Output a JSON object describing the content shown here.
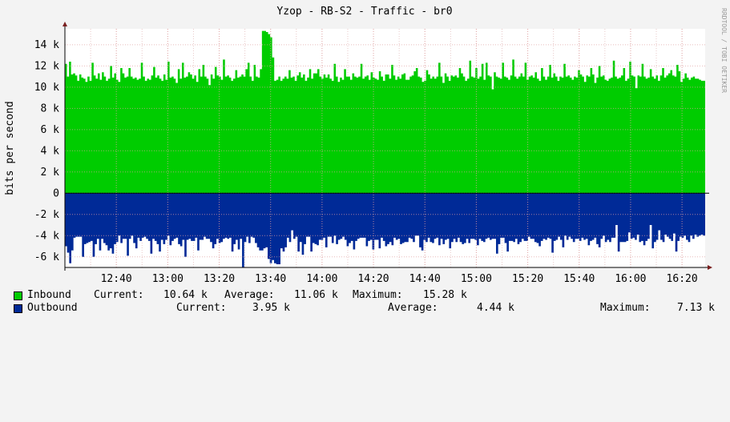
{
  "chart_data": {
    "type": "area",
    "title": "Yzop - RB-S2 - Traffic - br0",
    "ylabel": "bits per second",
    "watermark": "RRDTOOL / TOBI OETIKER",
    "ylim": [
      -7000,
      15500
    ],
    "yticks": [
      {
        "value": 14000,
        "label": "14 k"
      },
      {
        "value": 12000,
        "label": "12 k"
      },
      {
        "value": 10000,
        "label": "10 k"
      },
      {
        "value": 8000,
        "label": "8 k"
      },
      {
        "value": 6000,
        "label": "6 k"
      },
      {
        "value": 4000,
        "label": "4 k"
      },
      {
        "value": 2000,
        "label": "2 k"
      },
      {
        "value": 0,
        "label": "0"
      },
      {
        "value": -2000,
        "label": "-2 k"
      },
      {
        "value": -4000,
        "label": "-4 k"
      },
      {
        "value": -6000,
        "label": "-6 k"
      }
    ],
    "x_range": [
      "12:20",
      "16:29"
    ],
    "xticks": [
      "12:40",
      "13:00",
      "13:20",
      "13:40",
      "14:00",
      "14:20",
      "14:40",
      "15:00",
      "15:20",
      "15:40",
      "16:00",
      "16:20"
    ],
    "grid": true,
    "series": [
      {
        "name": "Inbound",
        "color": "#00cc00",
        "values": [
          12200,
          11000,
          12400,
          11200,
          11300,
          11100,
          10600,
          11200,
          10900,
          10800,
          10500,
          11000,
          10600,
          12300,
          11100,
          10800,
          11300,
          10700,
          11400,
          11000,
          10600,
          10800,
          12000,
          10900,
          11300,
          10700,
          10500,
          11800,
          11300,
          10900,
          11000,
          11800,
          11000,
          10800,
          10900,
          10700,
          10800,
          12300,
          11000,
          10600,
          10800,
          10700,
          11100,
          11900,
          10900,
          11100,
          10800,
          10600,
          11200,
          10700,
          12400,
          10900,
          11000,
          10800,
          10400,
          11700,
          10800,
          12300,
          10900,
          11000,
          11400,
          11200,
          10800,
          11100,
          10500,
          11700,
          11000,
          12100,
          11000,
          10800,
          10200,
          11200,
          10800,
          11900,
          11100,
          11000,
          10700,
          12600,
          11000,
          11100,
          10900,
          10600,
          10800,
          11600,
          10900,
          11000,
          11200,
          11000,
          11700,
          12300,
          11000,
          10600,
          12100,
          11000,
          10900,
          11700,
          15300,
          15300,
          15200,
          15000,
          14700,
          12800,
          10600,
          10700,
          11000,
          10600,
          10800,
          11000,
          10800,
          11600,
          10900,
          11000,
          10600,
          11100,
          11400,
          10900,
          11200,
          10600,
          10900,
          11700,
          10800,
          11300,
          11300,
          11700,
          11000,
          10800,
          11200,
          10900,
          11200,
          10800,
          10600,
          12200,
          11000,
          10500,
          10900,
          10700,
          11700,
          11000,
          11000,
          10700,
          11300,
          11000,
          10900,
          11000,
          12200,
          10800,
          11000,
          11100,
          10700,
          11400,
          10900,
          10800,
          10700,
          11500,
          11000,
          10600,
          11200,
          11200,
          10800,
          12100,
          11100,
          10700,
          11000,
          10800,
          11200,
          11300,
          10700,
          10700,
          11000,
          11100,
          11500,
          11800,
          11000,
          10900,
          10500,
          10600,
          11600,
          11200,
          10800,
          11000,
          10800,
          11000,
          12300,
          11000,
          10400,
          11300,
          11000,
          10600,
          11100,
          11000,
          11100,
          10900,
          11800,
          11300,
          11000,
          10600,
          10800,
          12500,
          11000,
          10900,
          11800,
          10800,
          11000,
          12200,
          10700,
          12300,
          11100,
          11000,
          9800,
          11400,
          11000,
          10900,
          10800,
          12300,
          11000,
          10900,
          10700,
          11100,
          12600,
          11000,
          10800,
          11000,
          11300,
          11000,
          12300,
          10700,
          11000,
          11100,
          10900,
          11400,
          10800,
          10600,
          11800,
          11000,
          10700,
          11000,
          12100,
          10900,
          11300,
          11000,
          10600,
          11000,
          10900,
          12200,
          11000,
          11100,
          10900,
          10700,
          11000,
          10900,
          11600,
          11200,
          11000,
          10500,
          11100,
          11000,
          11800,
          11200,
          10400,
          10900,
          12000,
          11000,
          11100,
          10700,
          10600,
          10800,
          10900,
          12500,
          11000,
          10800,
          10900,
          11100,
          11800,
          10600,
          10800,
          12400,
          11100,
          11000,
          9900,
          11100,
          11000,
          12200,
          11000,
          10800,
          10900,
          11700,
          11000,
          10800,
          11100,
          10600,
          11100,
          11800,
          10900,
          11100,
          11300,
          11600,
          11100,
          11000,
          12100,
          11500,
          10500,
          10800,
          11300,
          10900,
          10700,
          10900,
          11000,
          10800,
          10800,
          10700,
          10600,
          10600
        ]
      },
      {
        "name": "Outbound",
        "color": "#002a97",
        "values": [
          -5000,
          -5600,
          -6600,
          -5400,
          -4200,
          -4100,
          -4100,
          -4100,
          -6000,
          -4800,
          -4700,
          -4600,
          -4500,
          -6000,
          -4800,
          -4300,
          -5400,
          -4300,
          -4700,
          -4900,
          -5400,
          -5200,
          -5700,
          -4800,
          -4600,
          -4000,
          -4700,
          -4300,
          -4300,
          -5900,
          -4300,
          -4000,
          -4700,
          -5200,
          -4200,
          -4500,
          -4200,
          -4100,
          -4300,
          -4500,
          -5700,
          -4300,
          -4500,
          -4800,
          -5500,
          -4400,
          -4800,
          -4400,
          -4000,
          -4900,
          -4500,
          -4300,
          -4200,
          -4800,
          -5000,
          -4400,
          -6000,
          -4400,
          -4300,
          -4500,
          -4500,
          -4200,
          -5400,
          -4400,
          -4400,
          -4100,
          -4300,
          -4300,
          -4600,
          -5200,
          -4800,
          -4300,
          -4700,
          -4600,
          -4300,
          -4200,
          -4300,
          -4200,
          -5500,
          -4800,
          -4400,
          -5300,
          -4300,
          -7000,
          -4600,
          -4100,
          -4700,
          -4100,
          -4200,
          -4700,
          -5100,
          -5400,
          -5400,
          -5200,
          -5100,
          -6200,
          -6600,
          -6300,
          -6600,
          -6700,
          -6700,
          -5200,
          -5500,
          -5100,
          -4200,
          -4600,
          -3500,
          -4300,
          -4100,
          -5500,
          -4600,
          -5800,
          -4800,
          -4100,
          -4100,
          -5500,
          -4700,
          -4800,
          -4900,
          -4400,
          -4400,
          -4200,
          -5100,
          -4100,
          -4100,
          -4700,
          -4000,
          -4800,
          -4400,
          -4300,
          -4100,
          -4400,
          -5000,
          -4700,
          -4500,
          -5300,
          -4500,
          -4300,
          -4200,
          -4200,
          -4200,
          -5000,
          -4500,
          -4400,
          -5300,
          -4400,
          -4400,
          -5200,
          -4200,
          -4500,
          -5000,
          -4800,
          -4600,
          -4900,
          -4200,
          -4400,
          -4300,
          -4800,
          -4700,
          -4600,
          -4600,
          -4200,
          -4300,
          -4600,
          -4000,
          -4000,
          -5100,
          -5400,
          -4400,
          -4600,
          -4200,
          -4600,
          -4700,
          -4300,
          -4200,
          -4900,
          -4300,
          -4800,
          -4400,
          -4300,
          -5200,
          -4600,
          -4300,
          -4600,
          -4200,
          -4600,
          -4800,
          -4700,
          -4300,
          -4700,
          -4300,
          -4300,
          -4400,
          -4900,
          -4300,
          -4500,
          -4600,
          -4300,
          -4200,
          -4400,
          -4300,
          -4300,
          -5700,
          -4800,
          -4200,
          -4200,
          -4700,
          -5500,
          -4500,
          -4500,
          -4600,
          -4300,
          -4800,
          -4600,
          -4300,
          -4500,
          -4500,
          -4100,
          -4300,
          -4300,
          -4600,
          -4700,
          -5000,
          -4500,
          -4300,
          -4400,
          -4200,
          -4300,
          -5600,
          -4500,
          -4400,
          -4100,
          -4400,
          -5100,
          -4000,
          -4400,
          -4100,
          -4300,
          -4600,
          -4300,
          -4300,
          -4500,
          -4200,
          -4400,
          -4300,
          -4900,
          -4500,
          -4400,
          -4200,
          -4800,
          -5100,
          -4300,
          -4000,
          -4600,
          -4400,
          -4600,
          -4200,
          -4200,
          -3000,
          -5500,
          -4600,
          -4600,
          -4600,
          -4500,
          -3700,
          -4300,
          -4200,
          -4400,
          -3900,
          -4600,
          -4500,
          -4900,
          -4500,
          -4300,
          -3000,
          -5200,
          -4600,
          -4400,
          -3500,
          -4400,
          -4600,
          -3900,
          -4100,
          -4300,
          -4500,
          -3800,
          -5500,
          -4500,
          -4100,
          -4200,
          -4000,
          -4400,
          -4600,
          -4000,
          -4300,
          -3900,
          -4100,
          -4000,
          -3900,
          -4000
        ]
      }
    ]
  },
  "legend": {
    "inbound": {
      "name": "Inbound",
      "color": "#00cc00",
      "current_label": "Current:",
      "current": "10.64 k",
      "average_label": "Average:",
      "average": "11.06 k",
      "maximum_label": "Maximum:",
      "maximum": "15.28 k"
    },
    "outbound": {
      "name": "Outbound",
      "color": "#002a97",
      "current_label": "Current:",
      "current": "3.95 k",
      "average_label": "Average:",
      "average": "4.44 k",
      "maximum_label": "Maximum:",
      "maximum": "7.13 k"
    }
  }
}
